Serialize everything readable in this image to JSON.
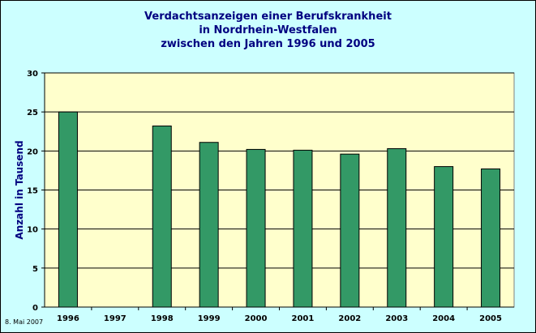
{
  "chart_data": {
    "type": "bar",
    "title_lines": [
      "Verdachtsanzeigen einer Berufskrankheit",
      "in Nordrhein-Westfalen",
      "zwischen den Jahren 1996 und 2005"
    ],
    "xlabel": "",
    "ylabel": "Anzahl in Tausend",
    "categories": [
      "1996",
      "1997",
      "1998",
      "1999",
      "2000",
      "2001",
      "2002",
      "2003",
      "2004",
      "2005"
    ],
    "values": [
      25.0,
      null,
      23.2,
      21.1,
      20.2,
      20.1,
      19.6,
      20.3,
      18.0,
      17.7
    ],
    "ylim": [
      0,
      30
    ],
    "yticks": [
      "0",
      "5",
      "10",
      "15",
      "20",
      "25",
      "30"
    ],
    "grid": true,
    "legend": "none",
    "colors": {
      "bar": "#339966",
      "plot_background": "#ffffcc",
      "chart_background": "#ccffff",
      "title": "#000080"
    }
  },
  "footnote": "8. Mai 2007"
}
